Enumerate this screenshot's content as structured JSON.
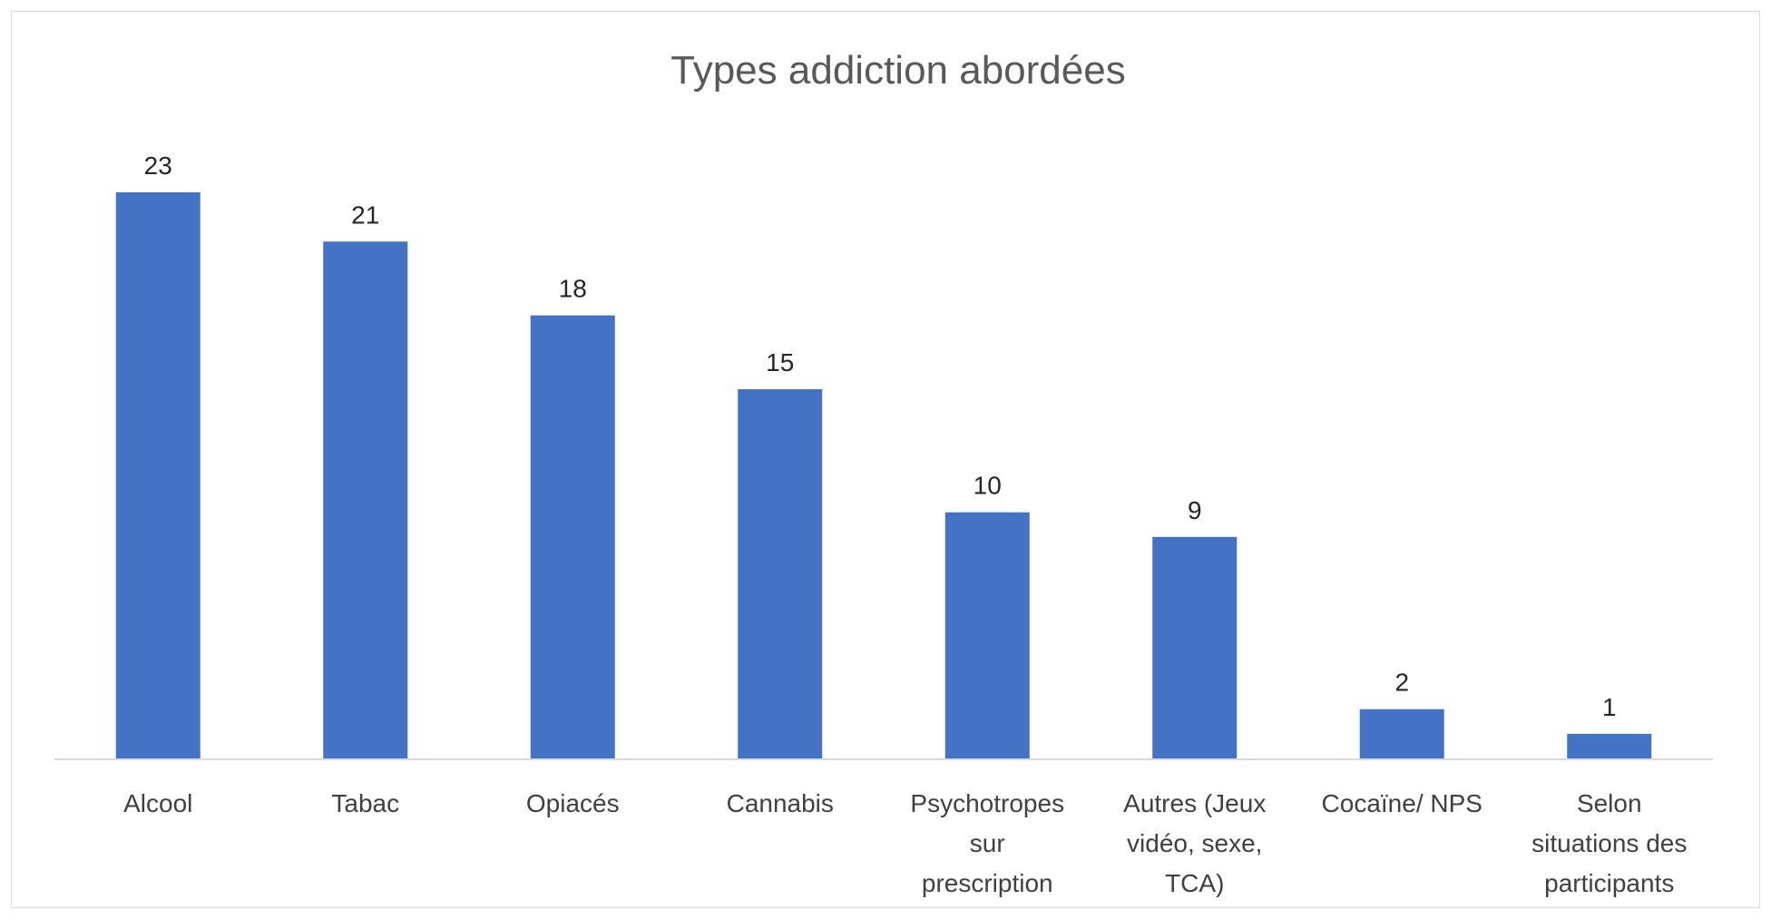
{
  "chart_data": {
    "type": "bar",
    "title": "Types addiction abordées",
    "categories": [
      [
        "Alcool"
      ],
      [
        "Tabac"
      ],
      [
        "Opiacés"
      ],
      [
        "Cannabis"
      ],
      [
        "Psychotropes",
        "sur",
        "prescription"
      ],
      [
        "Autres (Jeux",
        "vidéo, sexe,",
        "TCA)"
      ],
      [
        "Cocaïne/ NPS"
      ],
      [
        "Selon",
        "situations des",
        "participants"
      ]
    ],
    "values": [
      23,
      21,
      18,
      15,
      10,
      9,
      2,
      1
    ],
    "ylim": [
      0,
      23
    ],
    "grid": false,
    "legend": "none",
    "bar_color": "#4472C4",
    "axis_color": "#d9d9d9"
  }
}
